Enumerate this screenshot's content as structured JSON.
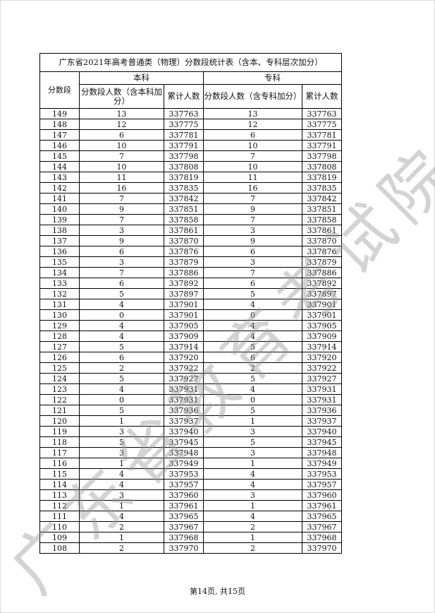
{
  "title": "广东省2021年高考普通类（物理）分数段统计表（含本、专科层次加分）",
  "headers": {
    "score": "分数段",
    "undergrad": "本科",
    "junior": "专科",
    "undergrad_count": "分数段人数（含本科加分）",
    "undergrad_cum": "累计人数",
    "junior_count": "分数段人数（含专科加分）",
    "junior_cum": "累计人数"
  },
  "rows": [
    [
      "149",
      "13",
      "337763",
      "13",
      "337763"
    ],
    [
      "148",
      "12",
      "337775",
      "12",
      "337775"
    ],
    [
      "147",
      "6",
      "337781",
      "6",
      "337781"
    ],
    [
      "146",
      "10",
      "337791",
      "10",
      "337791"
    ],
    [
      "145",
      "7",
      "337798",
      "7",
      "337798"
    ],
    [
      "144",
      "10",
      "337808",
      "10",
      "337808"
    ],
    [
      "143",
      "11",
      "337819",
      "11",
      "337819"
    ],
    [
      "142",
      "16",
      "337835",
      "16",
      "337835"
    ],
    [
      "141",
      "7",
      "337842",
      "7",
      "337842"
    ],
    [
      "140",
      "9",
      "337851",
      "9",
      "337851"
    ],
    [
      "139",
      "7",
      "337858",
      "7",
      "337858"
    ],
    [
      "138",
      "3",
      "337861",
      "3",
      "337861"
    ],
    [
      "137",
      "9",
      "337870",
      "9",
      "337870"
    ],
    [
      "136",
      "6",
      "337876",
      "6",
      "337876"
    ],
    [
      "135",
      "3",
      "337879",
      "3",
      "337879"
    ],
    [
      "134",
      "7",
      "337886",
      "7",
      "337886"
    ],
    [
      "133",
      "6",
      "337892",
      "6",
      "337892"
    ],
    [
      "132",
      "5",
      "337897",
      "5",
      "337897"
    ],
    [
      "131",
      "4",
      "337901",
      "4",
      "337901"
    ],
    [
      "130",
      "0",
      "337901",
      "0",
      "337901"
    ],
    [
      "129",
      "4",
      "337905",
      "4",
      "337905"
    ],
    [
      "128",
      "4",
      "337909",
      "4",
      "337909"
    ],
    [
      "127",
      "5",
      "337914",
      "5",
      "337914"
    ],
    [
      "126",
      "6",
      "337920",
      "6",
      "337920"
    ],
    [
      "125",
      "2",
      "337922",
      "2",
      "337922"
    ],
    [
      "124",
      "5",
      "337927",
      "5",
      "337927"
    ],
    [
      "123",
      "4",
      "337931",
      "4",
      "337931"
    ],
    [
      "122",
      "0",
      "337931",
      "0",
      "337931"
    ],
    [
      "121",
      "5",
      "337936",
      "5",
      "337936"
    ],
    [
      "120",
      "1",
      "337937",
      "1",
      "337937"
    ],
    [
      "119",
      "3",
      "337940",
      "3",
      "337940"
    ],
    [
      "118",
      "5",
      "337945",
      "5",
      "337945"
    ],
    [
      "117",
      "3",
      "337948",
      "3",
      "337948"
    ],
    [
      "116",
      "1",
      "337949",
      "1",
      "337949"
    ],
    [
      "115",
      "4",
      "337953",
      "4",
      "337953"
    ],
    [
      "114",
      "4",
      "337957",
      "4",
      "337957"
    ],
    [
      "113",
      "3",
      "337960",
      "3",
      "337960"
    ],
    [
      "112",
      "1",
      "337961",
      "1",
      "337961"
    ],
    [
      "111",
      "4",
      "337965",
      "4",
      "337965"
    ],
    [
      "110",
      "2",
      "337967",
      "2",
      "337967"
    ],
    [
      "109",
      "1",
      "337968",
      "1",
      "337968"
    ],
    [
      "108",
      "2",
      "337970",
      "2",
      "337970"
    ]
  ],
  "footer": "第14页, 共15页",
  "watermark": "广东省教育考试院"
}
